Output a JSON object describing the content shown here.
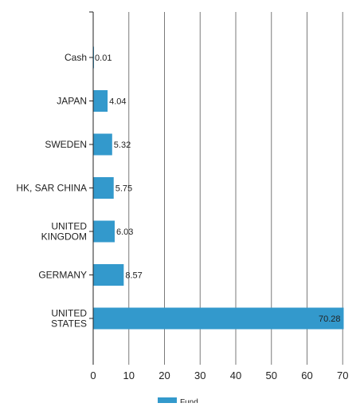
{
  "chart_data": {
    "type": "bar",
    "orientation": "horizontal",
    "categories": [
      "Cash",
      "JAPAN",
      "SWEDEN",
      "HK, SAR CHINA",
      "UNITED KINGDOM",
      "GERMANY",
      "UNITED STATES"
    ],
    "series": [
      {
        "name": "Fund",
        "values": [
          0.01,
          4.04,
          5.32,
          5.75,
          6.03,
          8.57,
          70.28
        ],
        "labels": [
          "0.01",
          "4.04",
          "5.32",
          "5.75",
          "6.03",
          "8.57",
          "70.28"
        ]
      }
    ],
    "xticks": [
      "0",
      "10",
      "20",
      "30",
      "40",
      "50",
      "60",
      "70"
    ],
    "xlim": [
      0,
      72
    ],
    "grid": "vertical",
    "legend": "bottom-center",
    "title": "",
    "xlabel": "",
    "ylabel": ""
  },
  "colors": {
    "bar": "#3399cc",
    "grid": "#7a7a7a",
    "axis": "#222222",
    "text": "#222222"
  }
}
